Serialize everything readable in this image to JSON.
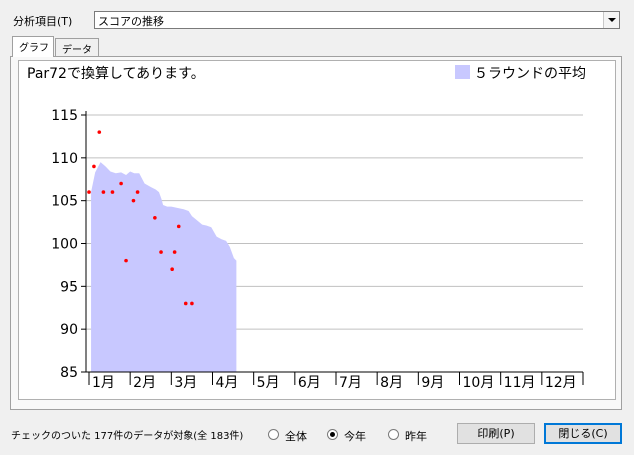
{
  "top": {
    "analysis_label": "分析項目(T)",
    "analysis_value": "スコアの推移"
  },
  "tabs": [
    {
      "label": "グラフ",
      "active": true
    },
    {
      "label": "データ",
      "active": false
    }
  ],
  "chart_data": {
    "type": "area",
    "annotation": "Par72で換算してあります。",
    "legend": [
      {
        "name": "５ラウンドの平均",
        "color": "#c8c8ff",
        "placement": "top-right"
      }
    ],
    "categories": [
      "1月",
      "2月",
      "3月",
      "4月",
      "5月",
      "6月",
      "7月",
      "8月",
      "9月",
      "10月",
      "11月",
      "12月"
    ],
    "y_ticks": [
      85,
      90,
      95,
      100,
      105,
      110,
      115
    ],
    "ylim": [
      85,
      115
    ],
    "xlim": [
      0,
      12
    ],
    "grid": true,
    "series": [
      {
        "name": "５ラウンドの平均",
        "kind": "area",
        "color": "#c8c8ff",
        "x": [
          0.05,
          0.15,
          0.28,
          0.4,
          0.52,
          0.65,
          0.78,
          0.9,
          1.0,
          1.1,
          1.22,
          1.35,
          1.5,
          1.62,
          1.7,
          1.76,
          1.8,
          1.9,
          2.0,
          2.1,
          2.2,
          2.3,
          2.42,
          2.5,
          2.6,
          2.75,
          2.85,
          2.97,
          3.1,
          3.22,
          3.33,
          3.42,
          3.52,
          3.58
        ],
        "y": [
          106.0,
          108.3,
          109.5,
          109.0,
          108.4,
          108.2,
          108.3,
          108.0,
          108.4,
          108.2,
          108.2,
          107.0,
          106.6,
          106.3,
          106.0,
          105.2,
          104.5,
          104.3,
          104.3,
          104.2,
          104.1,
          104.0,
          103.8,
          103.2,
          102.8,
          102.2,
          102.1,
          101.9,
          100.8,
          100.5,
          100.3,
          99.6,
          98.3,
          98.0
        ]
      },
      {
        "name": "スコア",
        "kind": "scatter",
        "color": "#ff0000",
        "x": [
          0.0,
          0.12,
          0.25,
          0.35,
          0.57,
          0.78,
          0.9,
          1.08,
          1.18,
          1.6,
          1.75,
          2.02,
          2.08,
          2.18,
          2.35,
          2.5
        ],
        "y": [
          106,
          109,
          113,
          106,
          106,
          107,
          98,
          105,
          106,
          103,
          99,
          97,
          99,
          102,
          93,
          93
        ]
      }
    ]
  },
  "status": {
    "summary": "チェックのついた 177件のデータが対象(全 183件)"
  },
  "filter_options": [
    {
      "label": "全体",
      "selected": false
    },
    {
      "label": "今年",
      "selected": true
    },
    {
      "label": "昨年",
      "selected": false
    }
  ],
  "buttons": {
    "print": "印刷(P)",
    "close": "閉じる(C)"
  }
}
